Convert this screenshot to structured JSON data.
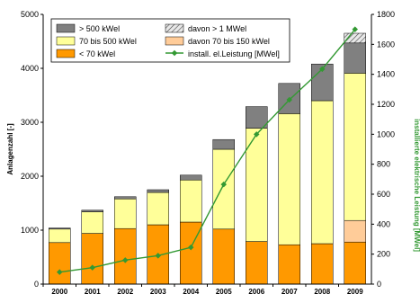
{
  "chart_data": {
    "type": "bar",
    "stacked": true,
    "categories": [
      "2000",
      "2001",
      "2002",
      "2003",
      "2004",
      "2005",
      "2006",
      "2007",
      "2008",
      "2009"
    ],
    "series": [
      {
        "name": "< 70 kWel",
        "color": "#ff9900",
        "values": [
          770,
          940,
          1030,
          1100,
          1150,
          1020,
          790,
          730,
          750,
          780
        ]
      },
      {
        "name": "davon 70 bis 150 kWel",
        "color": "#ffcc99",
        "values": [
          0,
          0,
          0,
          0,
          0,
          0,
          0,
          0,
          0,
          400
        ]
      },
      {
        "name": "70 bis 500 kWel",
        "color": "#ffff99",
        "values": [
          250,
          400,
          550,
          600,
          780,
          1480,
          2100,
          2430,
          2650,
          2730
        ]
      },
      {
        "name": "> 500 kWel",
        "color": "#808080",
        "values": [
          20,
          30,
          40,
          50,
          90,
          180,
          400,
          560,
          680,
          560
        ]
      },
      {
        "name": "davon > 1 MWel",
        "color": "#cccccc",
        "pattern": "hatched",
        "values": [
          0,
          0,
          0,
          0,
          0,
          0,
          0,
          0,
          0,
          180
        ]
      }
    ],
    "line": {
      "name": "install. el.Leistung [MWel]",
      "color": "#339933",
      "axis": "right",
      "values": [
        80,
        110,
        160,
        190,
        245,
        665,
        1000,
        1230,
        1435,
        1700
      ]
    },
    "ylabel": "Anlagenzahl [-]",
    "ylabel_right": "installierte elektrische Leistung [MWel]",
    "ylim": [
      0,
      5000
    ],
    "ylim_right": [
      0,
      1800
    ],
    "yticks": [
      "0",
      "1000",
      "2000",
      "3000",
      "4000",
      "5000"
    ],
    "yticks_right": [
      "0",
      "200",
      "400",
      "600",
      "800",
      "1000",
      "1200",
      "1400",
      "1600",
      "1800"
    ],
    "grid": false,
    "legend_position": "top-left",
    "legend_entries": [
      "> 500 kWel",
      "davon > 1 MWel",
      "70 bis 500 kWel",
      "davon 70 bis 150 kWel",
      "< 70 kWel",
      "install. el.Leistung [MWel]"
    ],
    "axis_color_right": "#339933"
  }
}
